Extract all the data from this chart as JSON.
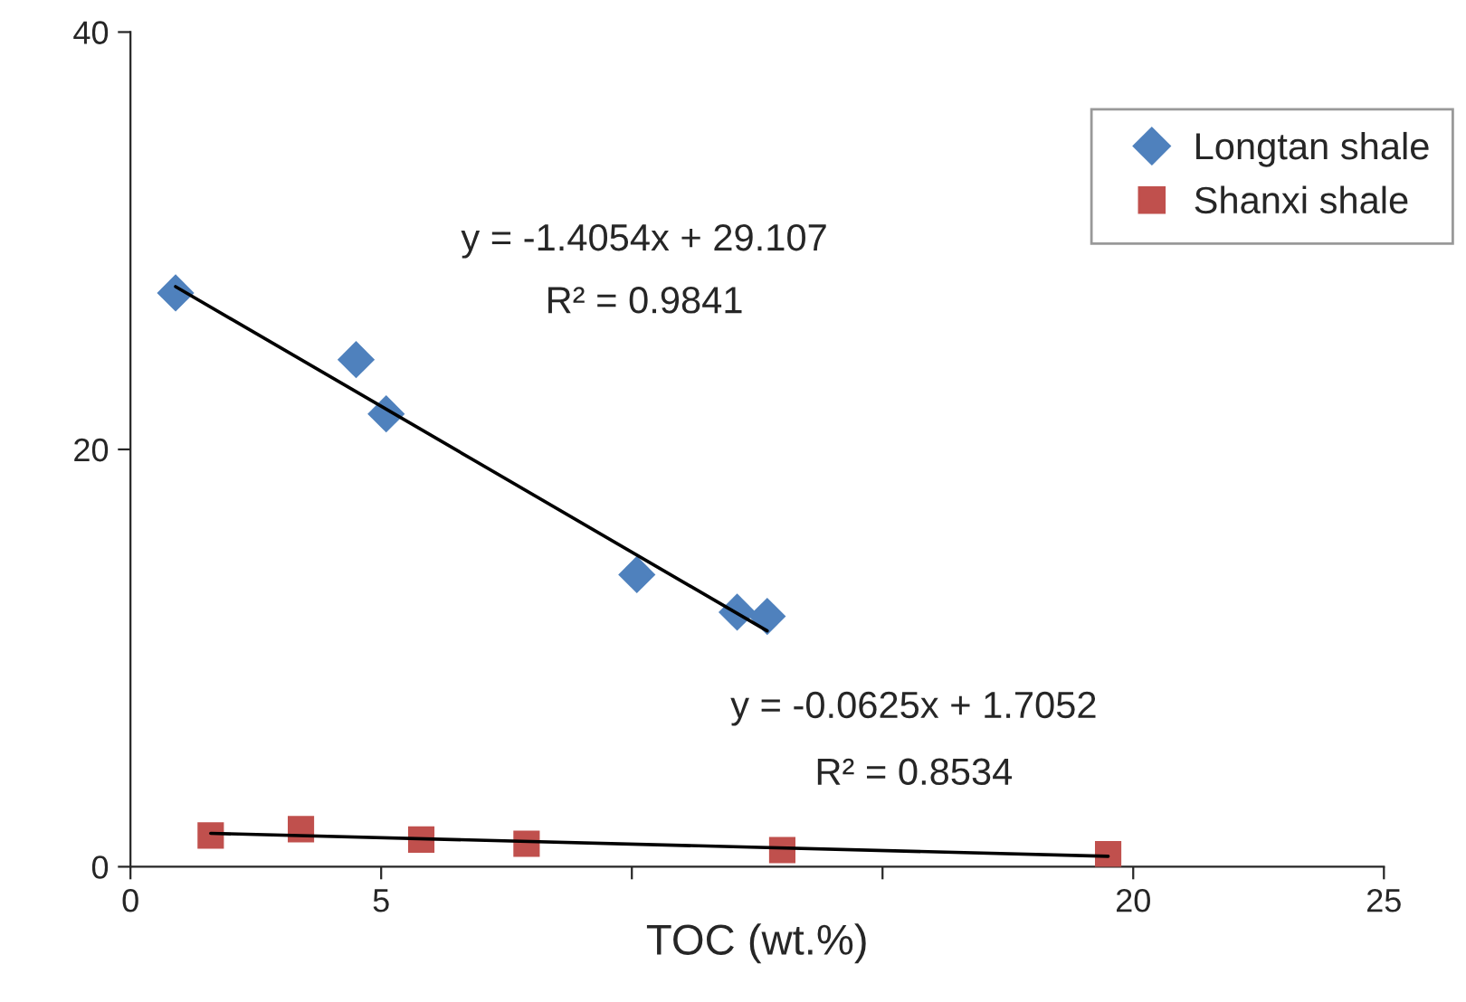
{
  "chart_data": {
    "type": "scatter",
    "xlabel": "TOC (wt.%)",
    "xlim": [
      0,
      25
    ],
    "xticks": [
      0,
      5,
      {
        "value": 10,
        "label": null
      },
      {
        "value": 15,
        "label": null
      },
      20,
      25
    ],
    "ylim": [
      0,
      40
    ],
    "yticks": [
      0,
      20,
      40
    ],
    "grid": false,
    "legend": "top right",
    "series": [
      {
        "name": "Longtan shale",
        "color": "#4f81bd",
        "marker": "diamond",
        "x": [
          0.9,
          4.5,
          5.1,
          10.1,
          12.1,
          12.7
        ],
        "values": [
          27.5,
          24.3,
          21.7,
          14.0,
          12.2,
          12.0
        ]
      },
      {
        "name": "Shanxi shale",
        "color": "#c0504d",
        "marker": "square",
        "x": [
          1.6,
          3.4,
          5.8,
          7.9,
          13.0,
          19.5
        ],
        "values": [
          1.5,
          1.8,
          1.3,
          1.1,
          0.8,
          0.6
        ]
      },
      {
        "type": "line",
        "color": "#000000",
        "marker": "none",
        "x": [
          0.9,
          12.7
        ],
        "values": [
          27.8,
          11.3
        ]
      },
      {
        "type": "line",
        "color": "#000000",
        "marker": "none",
        "x": [
          1.6,
          19.5
        ],
        "values": [
          1.6,
          0.5
        ]
      }
    ],
    "annotations": [
      "y = -1.4054x + 29.107",
      "R² = 0.9841",
      "y = -0.0625x + 1.7052",
      "R² = 0.8534"
    ]
  }
}
